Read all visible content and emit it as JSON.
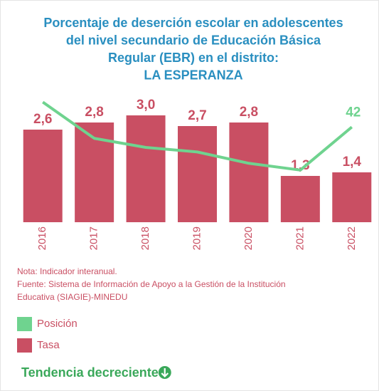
{
  "chart_data": {
    "type": "bar",
    "title": [
      "Porcentaje de deserción escolar en adolescentes",
      "del nivel secundario de Educación Básica",
      "Regular (EBR) en el distrito:",
      "LA ESPERANZA"
    ],
    "categories": [
      "2016",
      "2017",
      "2018",
      "2019",
      "2020",
      "2021",
      "2022"
    ],
    "series": [
      {
        "name": "Posición",
        "type": "line",
        "color": "#6fd38f",
        "axis": "y2",
        "values": [
          53,
          37,
          33,
          31,
          26,
          23,
          42
        ]
      },
      {
        "name": "Tasa",
        "type": "bar",
        "color": "#c94f63",
        "values": [
          2.6,
          2.8,
          3.0,
          2.7,
          2.8,
          1.3,
          1.4
        ],
        "value_labels": [
          "2,6",
          "2,8",
          "3,0",
          "2,7",
          "2,8",
          "1,3",
          "1,4"
        ]
      }
    ],
    "ylim": [
      0,
      3.5
    ],
    "y2lim": [
      0,
      55
    ],
    "notes": [
      "Nota: Indicador interanual.",
      "Fuente: Sistema de Información de Apoyo a la Gestión de la Institución",
      "Educativa (SIAGIE)-MINEDU"
    ],
    "trend": "Tendencia decreciente"
  }
}
